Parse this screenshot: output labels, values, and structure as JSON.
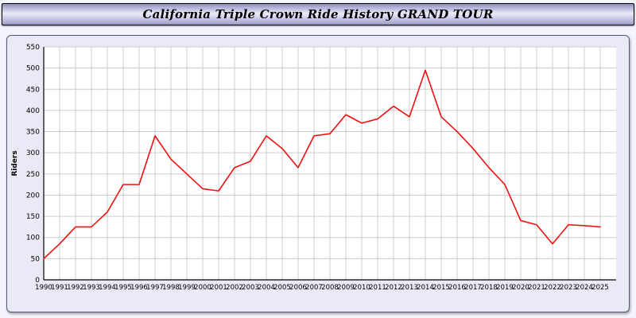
{
  "title": "California Triple Crown Ride History GRAND TOUR",
  "colors": {
    "line": "#ee1111",
    "plot_bg": "#ffffff",
    "panel_bg": "#eaeaf6",
    "grid": "#cccccc",
    "axis": "#000000"
  },
  "chart_data": {
    "type": "line",
    "x": [
      1990,
      1991,
      1992,
      1993,
      1994,
      1995,
      1996,
      1997,
      1998,
      1999,
      2000,
      2001,
      2002,
      2003,
      2004,
      2005,
      2006,
      2007,
      2008,
      2009,
      2010,
      2011,
      2012,
      2013,
      2014,
      2015,
      2016,
      2017,
      2018,
      2019,
      2020,
      2021,
      2022,
      2023,
      2024,
      2025
    ],
    "values": [
      50,
      85,
      125,
      125,
      160,
      225,
      225,
      340,
      285,
      250,
      215,
      210,
      265,
      280,
      340,
      310,
      265,
      340,
      345,
      390,
      370,
      380,
      410,
      385,
      495,
      385,
      350,
      310,
      265,
      225,
      140,
      130,
      85,
      130,
      128,
      125
    ],
    "title": "California Triple Crown Ride History GRAND TOUR",
    "xlabel": "",
    "ylabel": "Riders",
    "ylim": [
      0,
      550
    ],
    "ytick_step": 50,
    "grid": true,
    "legend": "none",
    "line_color": "#ee1111"
  }
}
